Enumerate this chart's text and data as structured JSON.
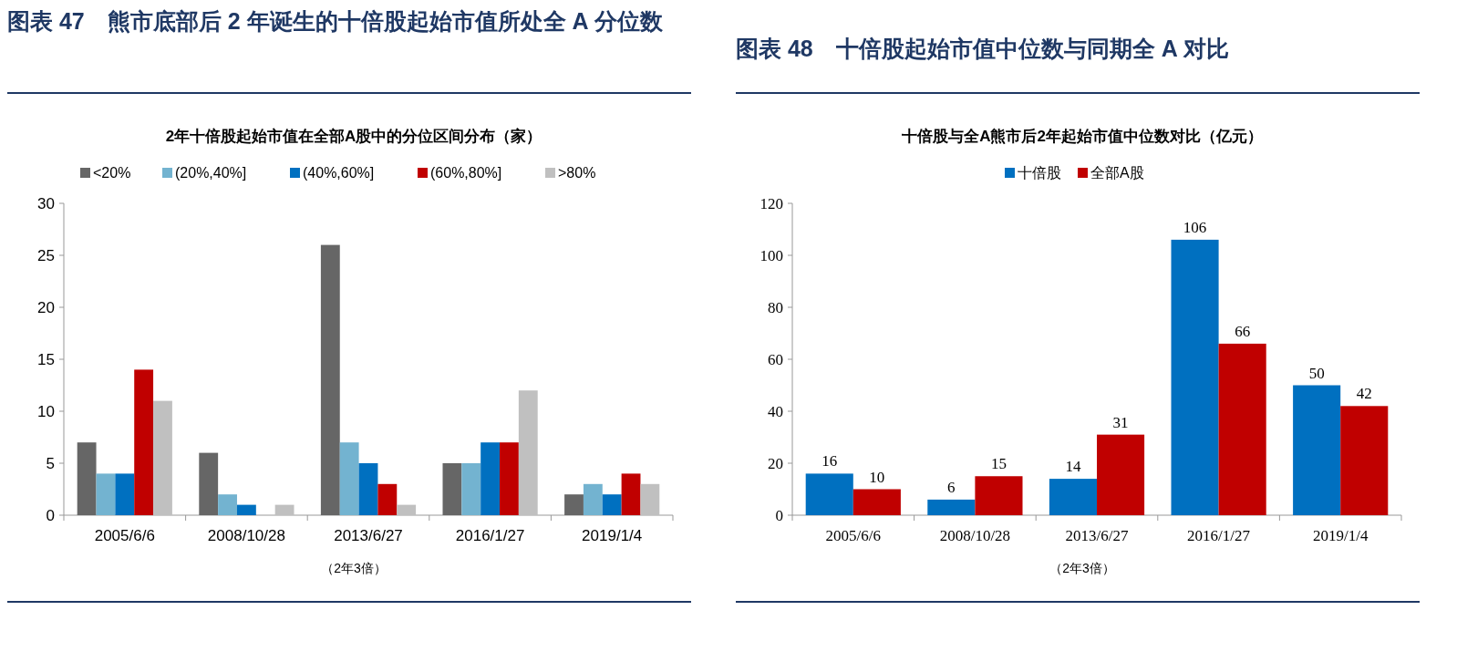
{
  "chart_data": [
    {
      "type": "bar",
      "title": "图表 47　熊市底部后 2 年诞生的十倍股起始市值所处全 A 分位数",
      "subtitle": "2年十倍股起始市值在全部A股中的分位区间分布（家）",
      "xlabel": "（2年3倍）",
      "categories": [
        "2005/6/6",
        "2008/10/28",
        "2013/6/27",
        "2016/1/27",
        "2019/1/4"
      ],
      "ylim": [
        0,
        30
      ],
      "yticks": [
        0,
        5,
        10,
        15,
        20,
        25,
        30
      ],
      "legend": "top",
      "series": [
        {
          "name": "<20%",
          "color": "#666666",
          "values": [
            7,
            6,
            26,
            5,
            2
          ]
        },
        {
          "name": "(20%,40%]",
          "color": "#73b3d0",
          "values": [
            4,
            2,
            7,
            5,
            3
          ]
        },
        {
          "name": "(40%,60%]",
          "color": "#0070c0",
          "values": [
            4,
            1,
            5,
            7,
            2
          ]
        },
        {
          "name": "(60%,80%]",
          "color": "#c00000",
          "values": [
            14,
            0,
            3,
            7,
            4
          ]
        },
        {
          "name": ">80%",
          "color": "#c0c0c0",
          "values": [
            11,
            1,
            1,
            12,
            3
          ]
        }
      ]
    },
    {
      "type": "bar",
      "title": "图表 48　十倍股起始市值中位数与同期全 A 对比",
      "subtitle": "十倍股与全A熊市后2年起始市值中位数对比（亿元）",
      "xlabel": "（2年3倍）",
      "categories": [
        "2005/6/6",
        "2008/10/28",
        "2013/6/27",
        "2016/1/27",
        "2019/1/4"
      ],
      "ylim": [
        0,
        120
      ],
      "yticks": [
        0,
        20,
        40,
        60,
        80,
        100,
        120
      ],
      "legend": "top",
      "data_labels": true,
      "series": [
        {
          "name": "十倍股",
          "color": "#0070c0",
          "values": [
            16,
            6,
            14,
            106,
            50
          ]
        },
        {
          "name": "全部A股",
          "color": "#c00000",
          "values": [
            10,
            15,
            31,
            66,
            42
          ]
        }
      ]
    }
  ]
}
